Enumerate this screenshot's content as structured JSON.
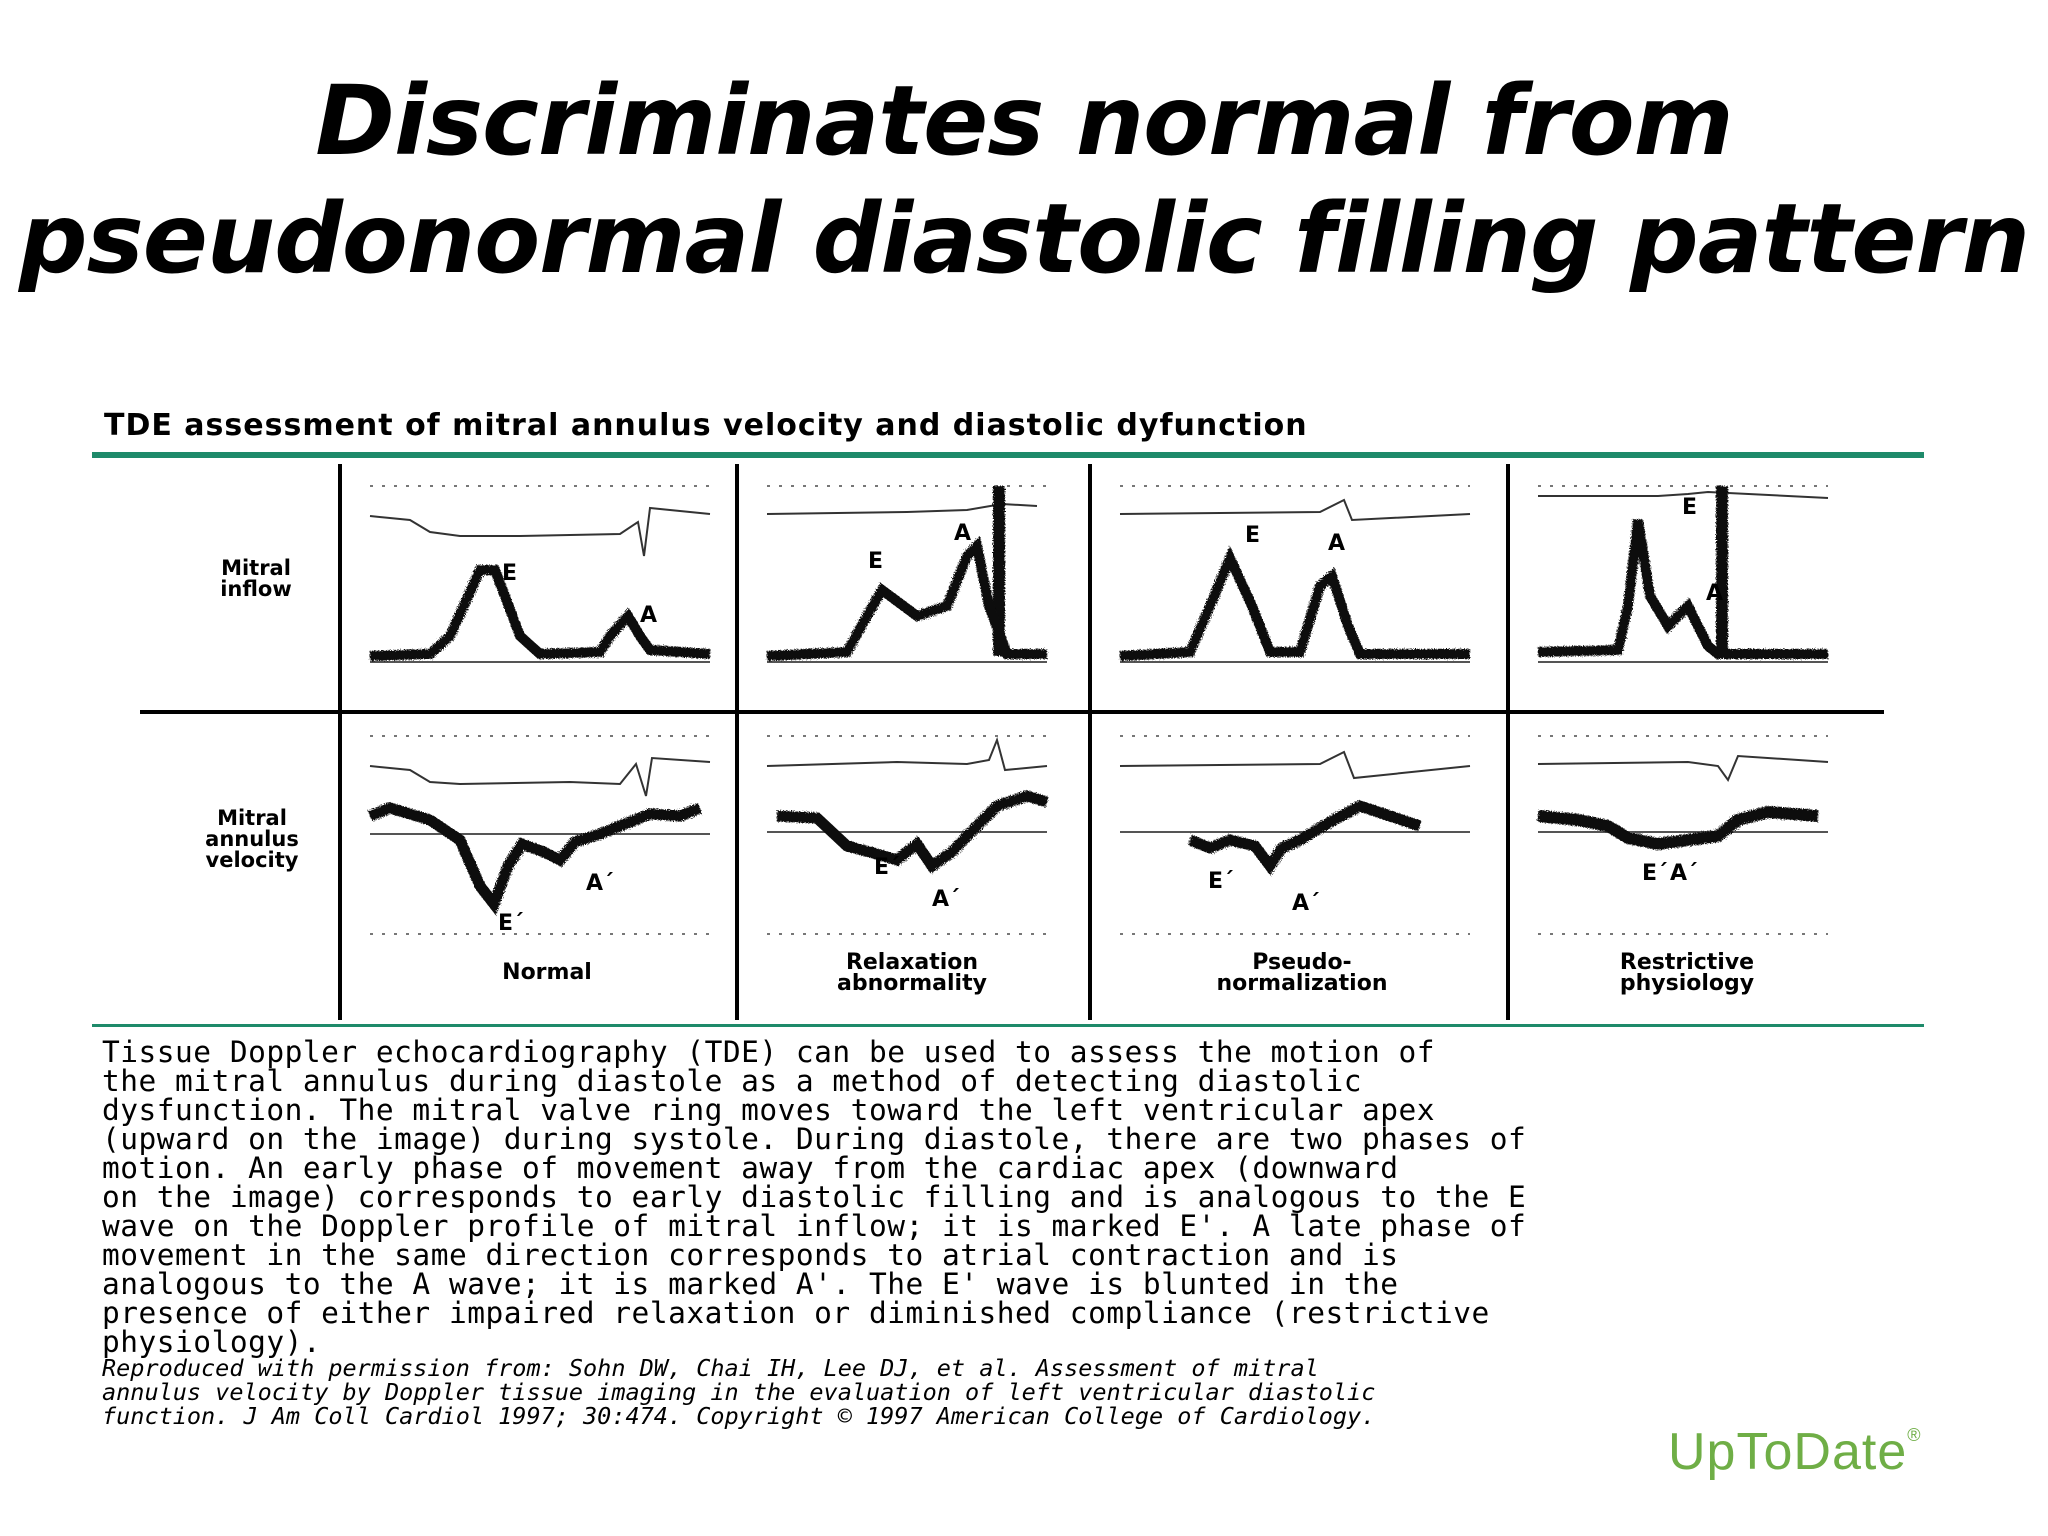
{
  "slide": {
    "title_lines": [
      "Discriminates normal from",
      "pseudonormal diastolic filling pattern"
    ]
  },
  "figure": {
    "title": "TDE assessment of mitral annulus velocity and diastolic dyfunction",
    "row_labels": {
      "mitral_inflow": [
        "Mitral",
        "inflow"
      ],
      "mitral_annulus_velocity": [
        "Mitral",
        "annulus",
        "velocity"
      ]
    },
    "columns": [
      {
        "label": [
          "Normal"
        ]
      },
      {
        "label": [
          "Relaxation",
          "abnormality"
        ]
      },
      {
        "label": [
          "Pseudo-",
          "normalization"
        ]
      },
      {
        "label": [
          "Restrictive",
          "physiology"
        ]
      }
    ],
    "wave_labels": {
      "E": "E",
      "A": "A",
      "E_prime": "E´",
      "A_prime": "A´"
    },
    "accent_color": "#1e8a6a",
    "caption_lines": [
      "Tissue Doppler echocardiography (TDE) can be used to assess the motion of",
      "the mitral annulus during diastole as a method of detecting diastolic",
      "dysfunction. The mitral valve ring moves toward the left ventricular apex",
      "(upward on the image) during systole. During diastole, there are two phases of",
      "motion. An early phase of movement away from the cardiac apex (downward",
      "on the image) corresponds to early diastolic filling and is analogous to the E",
      "wave on the Doppler profile of mitral inflow; it is marked E'. A late phase of",
      "movement in the same direction corresponds to atrial contraction and is",
      "analogous to the A wave; it is marked A'. The E' wave is blunted in the",
      "presence of either impaired relaxation or diminished compliance (restrictive",
      "physiology)."
    ],
    "citation_lines": [
      "Reproduced with permission from: Sohn DW, Chai IH, Lee DJ, et al. Assessment of mitral",
      "annulus velocity by Doppler tissue imaging in the evaluation of left ventricular diastolic",
      "function. J Am Coll Cardiol 1997; 30:474. Copyright © 1997 American College of Cardiology."
    ]
  },
  "brand": {
    "name": "UpToDate",
    "mark": "®",
    "color": "#6fae46"
  }
}
